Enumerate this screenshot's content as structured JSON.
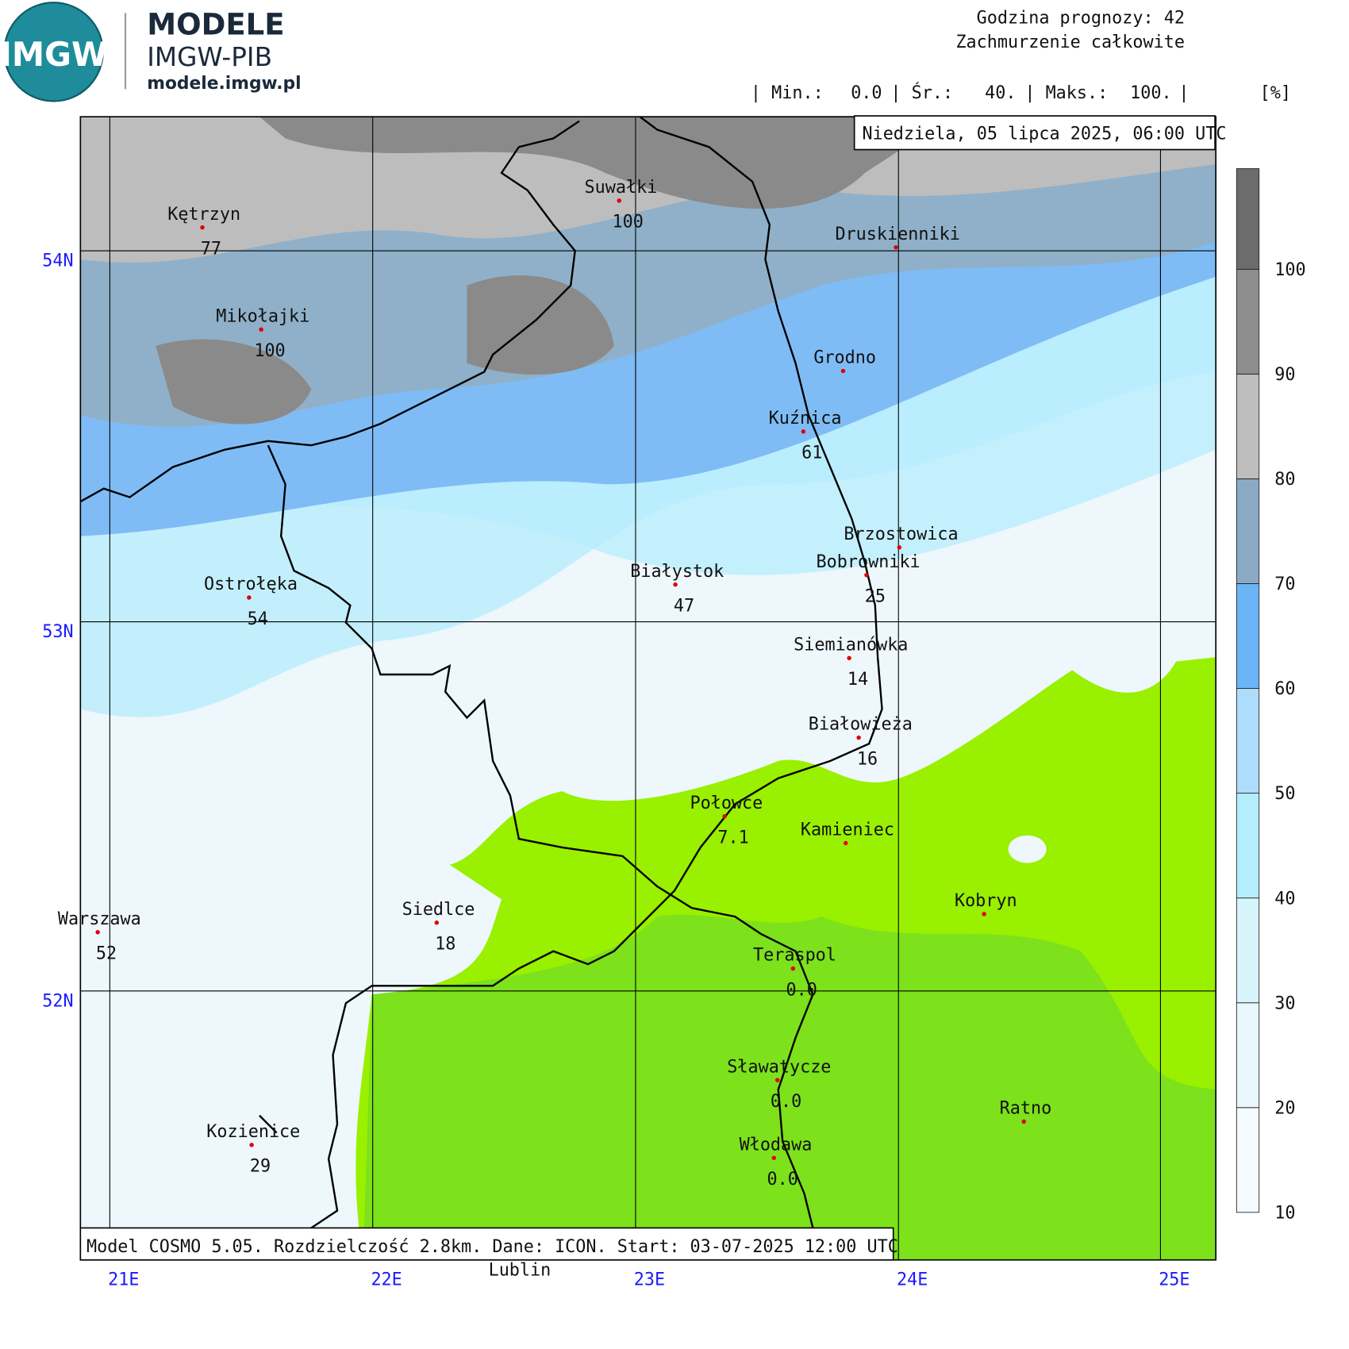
{
  "header": {
    "logo_text": "IMGW",
    "brand_title": "MODELE",
    "brand_subtitle": "IMGW-PIB",
    "brand_url": "modele.imgw.pl"
  },
  "forecast": {
    "hour_label": "Godzina prognozy:",
    "hour": "42",
    "parameter": "Zachmurzenie całkowite"
  },
  "stats": {
    "min_label": "| Min.:",
    "min": "0.0",
    "mean_label": "| Śr.:",
    "mean": "40.",
    "max_label": "| Maks.:",
    "max": "100.",
    "sep": "|",
    "unit": "[%]"
  },
  "date_label": "Niedziela, 05 lipca 2025, 06:00 UTC",
  "footer": "Model COSMO 5.05. Rozdzielczość 2.8km. Dane: ICON. Start: 03-07-2025 12:00 UTC",
  "grid": {
    "lat_labels": [
      "54N",
      "53N",
      "52N"
    ],
    "lon_labels": [
      "21E",
      "22E",
      "23E",
      "24E",
      "25E"
    ]
  },
  "legend": {
    "ticks": [
      "10",
      "20",
      "30",
      "40",
      "50",
      "60",
      "70",
      "80",
      "90",
      "100"
    ],
    "colors": [
      "#f4fafd",
      "#e9f6fb",
      "#d6f4fa",
      "#b4eefc",
      "#aedcfd",
      "#6bb5f7",
      "#8aaac6",
      "#bebebe",
      "#8e8e8e",
      "#6c6c6c"
    ]
  },
  "cities": [
    {
      "name": "Kętrzyn",
      "value": "77"
    },
    {
      "name": "Suwałki",
      "value": "100"
    },
    {
      "name": "Druskienniki"
    },
    {
      "name": "Mikołajki",
      "value": "100"
    },
    {
      "name": "Grodno"
    },
    {
      "name": "Kuźnica",
      "value": "61"
    },
    {
      "name": "Brzostowica"
    },
    {
      "name": "Bobrowniki",
      "value": "25"
    },
    {
      "name": "Białystok",
      "value": "47"
    },
    {
      "name": "Ostrołęka",
      "value": "54"
    },
    {
      "name": "Siemianówka",
      "value": "14"
    },
    {
      "name": "Białowieża",
      "value": "16"
    },
    {
      "name": "Połowce",
      "value": "7.1"
    },
    {
      "name": "Kamieniec"
    },
    {
      "name": "Kobryn"
    },
    {
      "name": "Warszawa",
      "value": "52"
    },
    {
      "name": "Siedlce",
      "value": "18"
    },
    {
      "name": "Teraspol",
      "value": "0.0"
    },
    {
      "name": "Sławatycze",
      "value": "0.0"
    },
    {
      "name": "Ratno"
    },
    {
      "name": "Włodawa",
      "value": "0.0"
    },
    {
      "name": "Kozienice",
      "value": "29"
    },
    {
      "name": "Lublin"
    }
  ]
}
